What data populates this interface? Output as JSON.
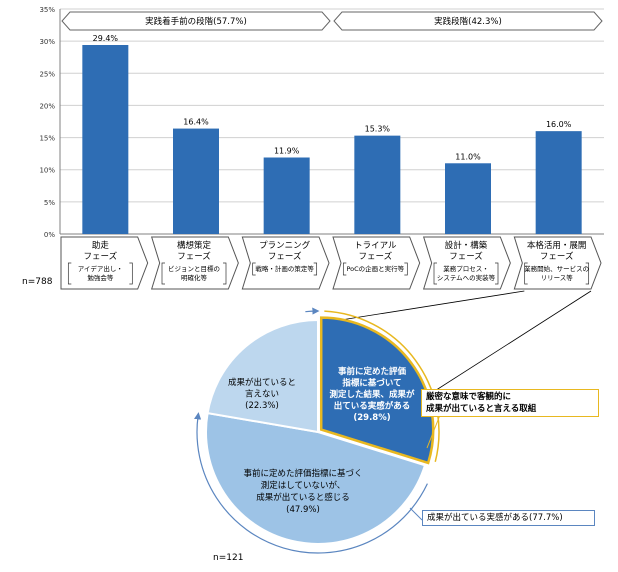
{
  "chart_data": [
    {
      "type": "bar",
      "ylim": [
        0,
        35
      ],
      "yticks": [
        "0%",
        "5%",
        "10%",
        "15%",
        "20%",
        "25%",
        "30%",
        "35%"
      ],
      "grid": true,
      "bar_color": "#2e6db4",
      "groups": [
        {
          "label": "実践着手前の段階(57.7%)",
          "span": [
            0,
            2
          ]
        },
        {
          "label": "実践段階(42.3%)",
          "span": [
            3,
            5
          ]
        }
      ],
      "categories": [
        {
          "name": "助走",
          "sub": "フェーズ",
          "note": [
            "アイデア出し・",
            "勉強会等"
          ]
        },
        {
          "name": "構想策定",
          "sub": "フェーズ",
          "note": [
            "ビジョンと目標の",
            "明確化等"
          ]
        },
        {
          "name": "プランニング",
          "sub": "フェーズ",
          "note": [
            "戦略・計画の策定等"
          ]
        },
        {
          "name": "トライアル",
          "sub": "フェーズ",
          "note": [
            "PoCの企画と実行等"
          ]
        },
        {
          "name": "設計・構築",
          "sub": "フェーズ",
          "note": [
            "業務プロセス・",
            "システムへの実装等"
          ]
        },
        {
          "name": "本格活用・展開",
          "sub": "フェーズ",
          "note": [
            "業務開始、サービスの",
            "リリース等"
          ]
        }
      ],
      "values": [
        29.4,
        16.4,
        11.9,
        15.3,
        11.0,
        16.0
      ],
      "value_labels": [
        "29.4%",
        "16.4%",
        "11.9%",
        "15.3%",
        "11.0%",
        "16.0%"
      ],
      "n_label": "n=788"
    },
    {
      "type": "pie",
      "slices": [
        {
          "lines": [
            "事前に定めた評価",
            "指標に基づいて",
            "測定した結果、成果が",
            "出ている実感がある",
            "(29.8%)"
          ],
          "value": 29.8,
          "color": "#2e6db4",
          "text_color": "#ffffff",
          "outline": "#e8b820"
        },
        {
          "lines": [
            "事前に定めた評価指標に基づく",
            "測定はしていないが、",
            "成果が出ていると感じる",
            "(47.9%)"
          ],
          "value": 47.9,
          "color": "#9dc3e6",
          "text_color": "#000000"
        },
        {
          "lines": [
            "成果が出ていると",
            "言えない",
            "(22.3%)"
          ],
          "value": 22.3,
          "color": "#bdd7ee",
          "text_color": "#000000"
        }
      ],
      "n_label": "n=121"
    }
  ],
  "annotations": {
    "rigorous": [
      "厳密な意味で客観的に",
      "成果が出ていると言える取組"
    ],
    "sense": "成果が出ている実感がある(77.7%)"
  }
}
